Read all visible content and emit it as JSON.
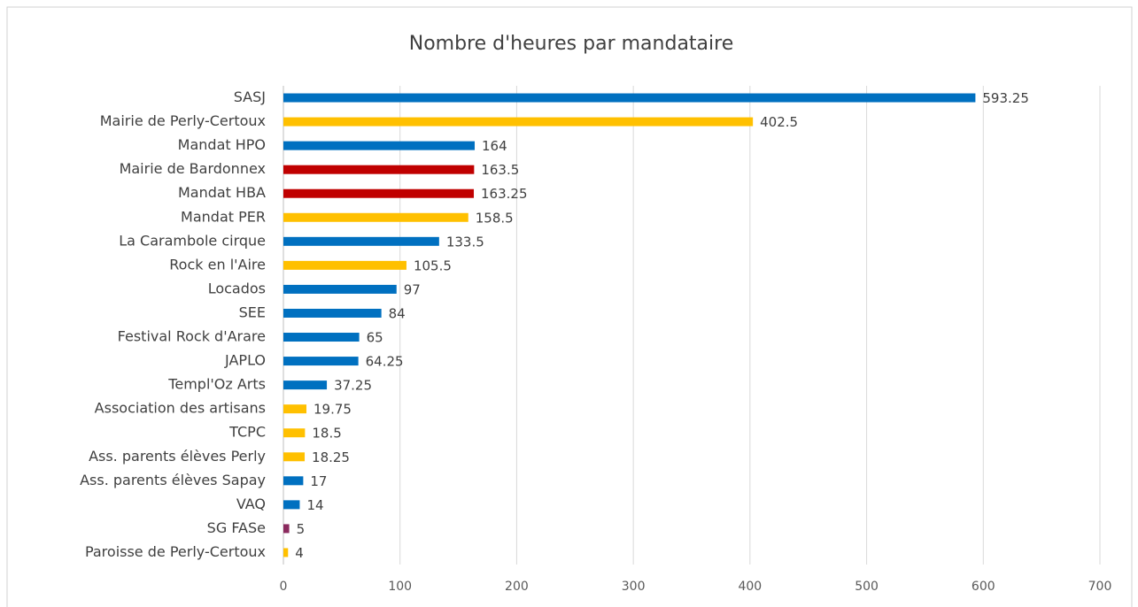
{
  "chart_data": {
    "type": "barh",
    "title": "Nombre d'heures par mandataire",
    "categories": [
      "SASJ",
      "Mairie de Perly-Certoux",
      "Mandat HPO",
      "Mairie de Bardonnex",
      "Mandat HBA",
      "Mandat PER",
      "La Carambole cirque",
      "Rock en l'Aire",
      "Locados",
      "SEE",
      "Festival Rock d'Arare",
      "JAPLO",
      "Templ'Oz Arts",
      "Association des artisans",
      "TCPC",
      "Ass. parents élèves Perly",
      "Ass. parents élèves Sapay",
      "VAQ",
      "SG FASe",
      "Paroisse de Perly-Certoux"
    ],
    "values": [
      593.25,
      402.5,
      164,
      163.5,
      163.25,
      158.5,
      133.5,
      105.5,
      97,
      84,
      65,
      64.25,
      37.25,
      19.75,
      18.5,
      18.25,
      17,
      14,
      5,
      4
    ],
    "colors": [
      "#0070c0",
      "#ffc000",
      "#0070c0",
      "#c00000",
      "#c00000",
      "#ffc000",
      "#0070c0",
      "#ffc000",
      "#0070c0",
      "#0070c0",
      "#0070c0",
      "#0070c0",
      "#0070c0",
      "#ffc000",
      "#ffc000",
      "#ffc000",
      "#0070c0",
      "#0070c0",
      "#8b2a5e",
      "#ffc000"
    ],
    "xlim": [
      0,
      700
    ],
    "xticks": [
      0,
      100,
      200,
      300,
      400,
      500,
      600,
      700
    ],
    "grid": true
  }
}
